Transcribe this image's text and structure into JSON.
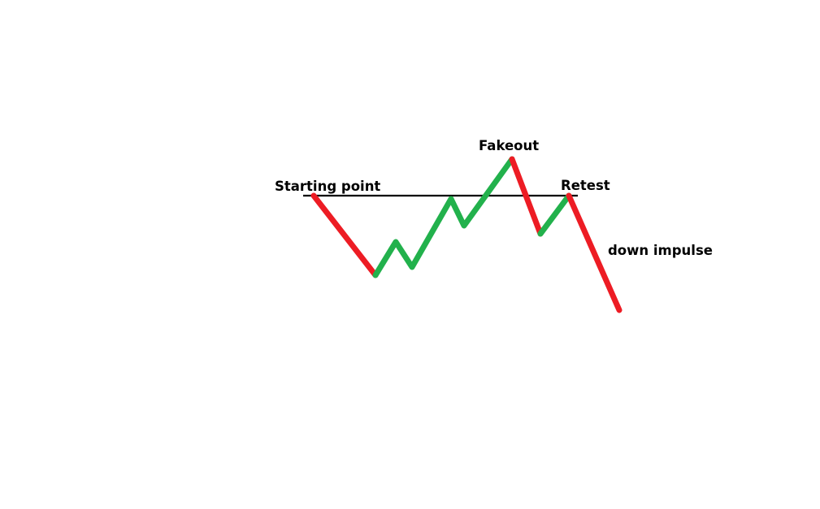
{
  "labels": {
    "starting_point": "Starting point",
    "fakeout": "Fakeout",
    "retest": "Retest",
    "down_impulse": "down impulse"
  },
  "colors": {
    "up": "#22b14c",
    "down": "#ed1c24",
    "level": "#000000",
    "background": "#ffffff"
  }
}
